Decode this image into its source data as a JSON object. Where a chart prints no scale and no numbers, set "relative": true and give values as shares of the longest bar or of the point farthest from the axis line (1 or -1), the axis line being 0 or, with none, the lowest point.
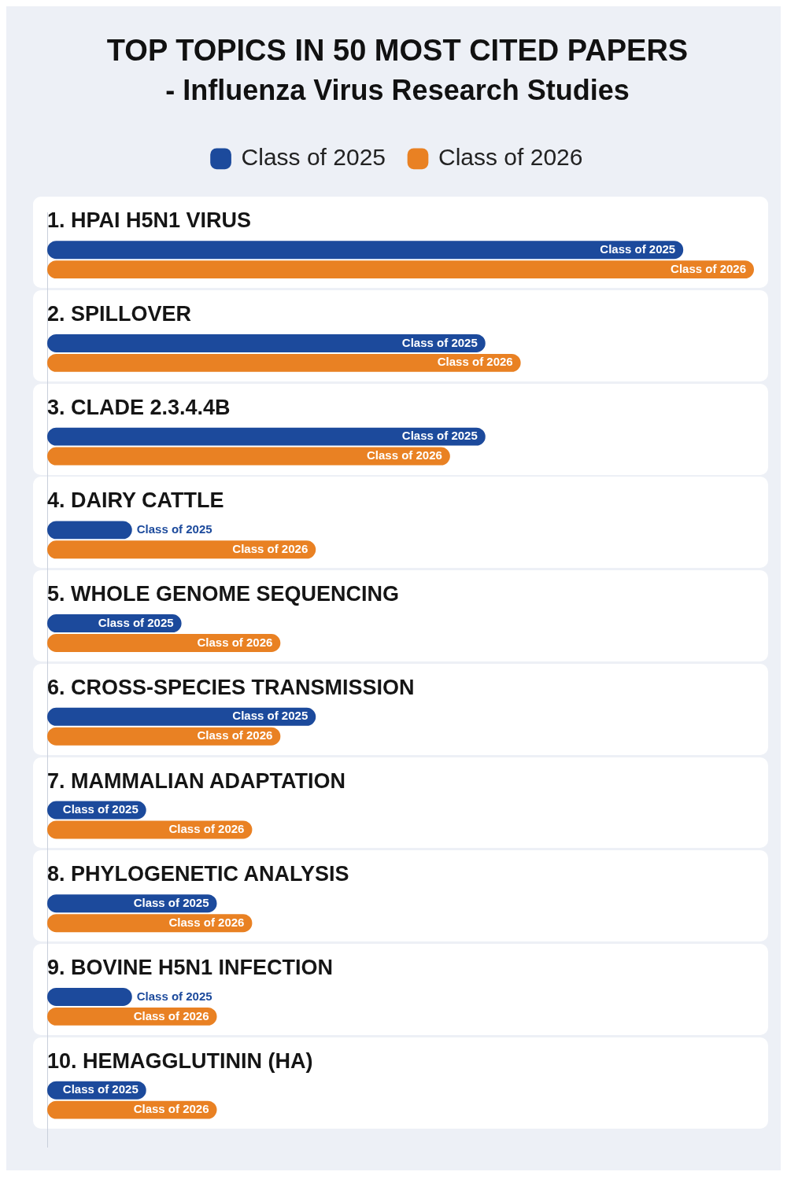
{
  "chart_data": {
    "type": "bar",
    "orientation": "horizontal",
    "relative": true,
    "title": "TOP TOPICS IN 50 MOST CITED PAPERS",
    "subtitle": "- Influenza Virus Research Studies",
    "legend": "top",
    "categories": [
      "1. HPAI H5N1 VIRUS",
      "2. SPILLOVER",
      "3. CLADE 2.3.4.4B",
      "4. DAIRY CATTLE",
      "5. WHOLE GENOME SEQUENCING",
      "6. CROSS-SPECIES TRANSMISSION",
      "7. MAMMALIAN ADAPTATION",
      "8. PHYLOGENETIC ANALYSIS",
      "9. BOVINE H5N1 INFECTION",
      "10. HEMAGGLUTININ (HA)"
    ],
    "series": [
      {
        "name": "Class of 2025",
        "color": "#1c4a9c",
        "values": [
          0.9,
          0.62,
          0.62,
          0.12,
          0.19,
          0.38,
          0.14,
          0.24,
          0.12,
          0.14
        ]
      },
      {
        "name": "Class of 2026",
        "color": "#e98123",
        "values": [
          1,
          0.67,
          0.57,
          0.38,
          0.33,
          0.33,
          0.29,
          0.29,
          0.24,
          0.24
        ]
      }
    ]
  }
}
